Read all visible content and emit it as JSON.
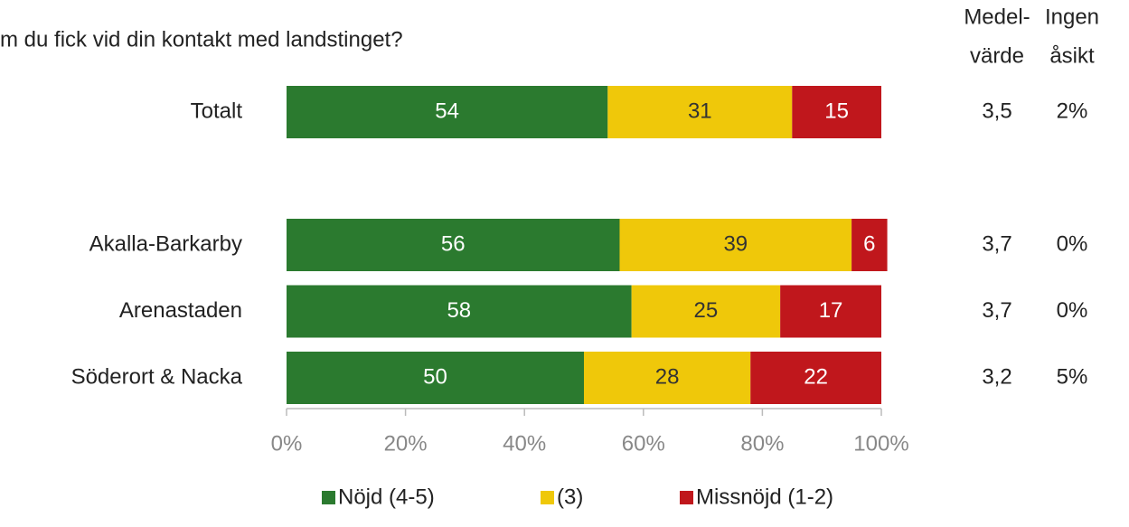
{
  "chart_data": {
    "type": "stacked_barh",
    "title": "m du fick vid din kontakt med landstinget?",
    "categories": [
      "Totalt",
      null,
      "Akalla-Barkarby",
      "Arenastaden",
      "Söderort & Nacka"
    ],
    "series": [
      {
        "name": "Nöjd (4-5)",
        "color": "#2b7a2f",
        "label_color": "#ffffff",
        "values": [
          54,
          null,
          56,
          58,
          50
        ]
      },
      {
        "name": "(3)",
        "color": "#efc80a",
        "label_color": "#333333",
        "values": [
          31,
          null,
          39,
          25,
          28
        ]
      },
      {
        "name": "Missnöjd (1-2)",
        "color": "#c0171c",
        "label_color": "#ffffff",
        "values": [
          15,
          null,
          6,
          17,
          22
        ]
      }
    ],
    "xlim": [
      0,
      100
    ],
    "xticks": [
      {
        "value": 0,
        "label": "0%"
      },
      {
        "value": 20,
        "label": "20%"
      },
      {
        "value": 40,
        "label": "40%"
      },
      {
        "value": 60,
        "label": "60%"
      },
      {
        "value": 80,
        "label": "80%"
      },
      {
        "value": 100,
        "label": "100%"
      }
    ],
    "columns": [
      {
        "header": [
          "Medel-",
          "värde"
        ],
        "values": [
          3.5,
          null,
          3.7,
          3.7,
          3.2
        ],
        "value_labels": [
          "3,5",
          null,
          "3,7",
          "3,7",
          "3,2"
        ]
      },
      {
        "header": [
          "Ingen",
          "åsikt"
        ],
        "values": [
          2,
          null,
          0,
          0,
          5
        ],
        "value_labels": [
          "2%",
          null,
          "0%",
          "0%",
          "5%"
        ]
      }
    ]
  }
}
